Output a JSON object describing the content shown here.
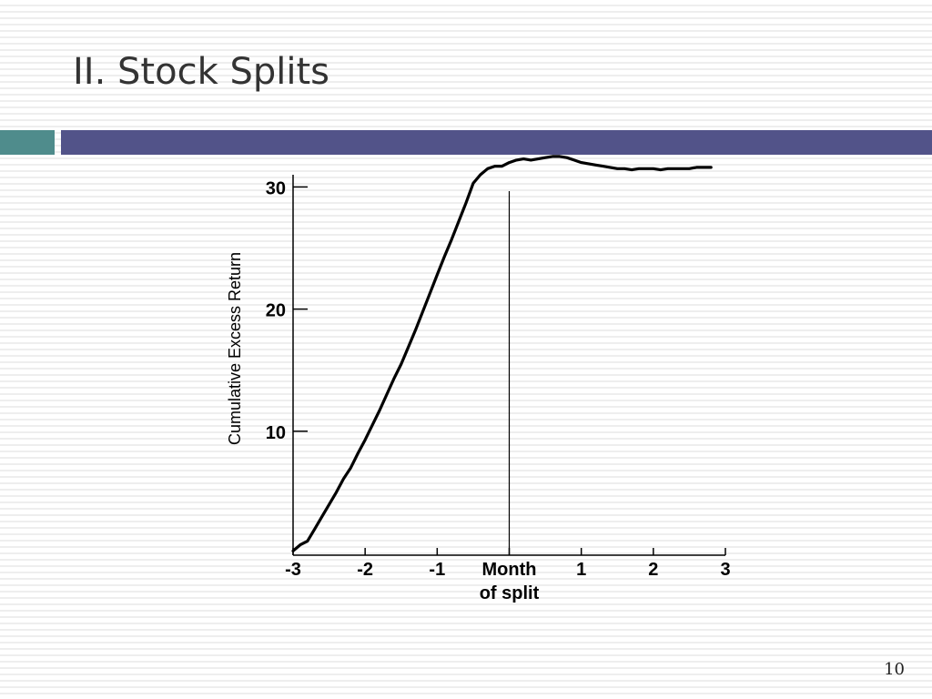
{
  "slide": {
    "title": "II. Stock Splits",
    "page_number": "10"
  },
  "colors": {
    "accent_teal": "#4f8c8c",
    "accent_purple": "#525389",
    "line": "#000000"
  },
  "chart_data": {
    "type": "line",
    "title": "",
    "ylabel": "Cumulative Excess Return",
    "xlabel": "",
    "xlim": [
      -3,
      3
    ],
    "ylim": [
      0,
      31
    ],
    "grid": false,
    "legend": "none",
    "x_ticks": [
      {
        "value": -3,
        "label": "-3"
      },
      {
        "value": -2,
        "label": "-2"
      },
      {
        "value": -1,
        "label": "-1"
      },
      {
        "value": 0,
        "label": "Month",
        "label2": "of split"
      },
      {
        "value": 1,
        "label": "1"
      },
      {
        "value": 2,
        "label": "2"
      },
      {
        "value": 3,
        "label": "3"
      }
    ],
    "y_ticks": [
      {
        "value": 10,
        "label": "10"
      },
      {
        "value": 20,
        "label": "20"
      },
      {
        "value": 30,
        "label": "30"
      }
    ],
    "reference_line_x": 0,
    "series": [
      {
        "x": [
          -3.0,
          -2.9,
          -2.8,
          -2.7,
          -2.6,
          -2.5,
          -2.4,
          -2.3,
          -2.2,
          -2.1,
          -2.0,
          -1.9,
          -1.8,
          -1.7,
          -1.6,
          -1.5,
          -1.4,
          -1.3,
          -1.2,
          -1.1,
          -1.0,
          -0.9,
          -0.8,
          -0.7,
          -0.6,
          -0.5,
          -0.4,
          -0.3,
          -0.2,
          -0.1,
          0.0,
          0.1,
          0.2,
          0.3,
          0.4,
          0.5,
          0.6,
          0.7,
          0.8,
          0.9,
          1.0,
          1.1,
          1.2,
          1.3,
          1.4,
          1.5,
          1.6,
          1.7,
          1.8,
          1.9,
          2.0,
          2.1,
          2.2,
          2.3,
          2.4,
          2.5,
          2.6,
          2.7,
          2.8
        ],
        "y": [
          0.2,
          0.7,
          1.0,
          2.0,
          3.0,
          4.0,
          5.0,
          6.1,
          7.0,
          8.2,
          9.3,
          10.5,
          11.7,
          13.0,
          14.3,
          15.5,
          16.9,
          18.3,
          19.8,
          21.3,
          22.8,
          24.3,
          25.7,
          27.2,
          28.7,
          30.3,
          31.0,
          31.5,
          31.7,
          31.7,
          32.0,
          32.2,
          32.3,
          32.2,
          32.3,
          32.4,
          32.5,
          32.5,
          32.4,
          32.2,
          32.0,
          31.9,
          31.8,
          31.7,
          31.6,
          31.5,
          31.5,
          31.4,
          31.5,
          31.5,
          31.5,
          31.4,
          31.5,
          31.5,
          31.5,
          31.5,
          31.6,
          31.6,
          31.6
        ]
      }
    ]
  }
}
